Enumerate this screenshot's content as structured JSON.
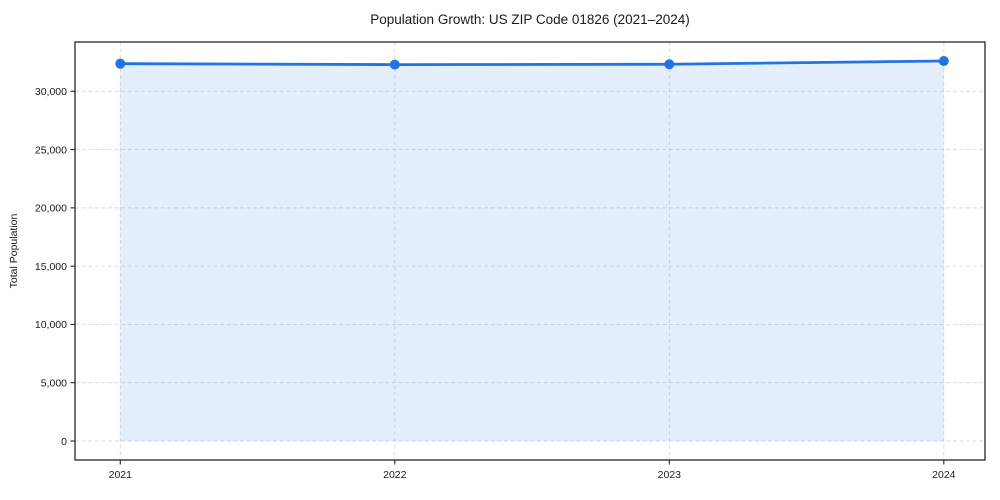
{
  "chart_data": {
    "type": "line",
    "title": "Population Growth: US ZIP Code 01826 (2021–2024)",
    "xlabel": "",
    "ylabel": "Total Population",
    "x": [
      2021,
      2022,
      2023,
      2024
    ],
    "series": [
      {
        "name": "Total Population",
        "values": [
          32370,
          32290,
          32320,
          32600
        ]
      }
    ],
    "x_tick_labels": [
      "2021",
      "2022",
      "2023",
      "2024"
    ],
    "y_ticks": [
      0,
      5000,
      10000,
      15000,
      20000,
      25000,
      30000
    ],
    "y_tick_labels": [
      "0",
      "5,000",
      "10,000",
      "15,000",
      "20,000",
      "25,000",
      "30,000"
    ],
    "xlim": [
      2020.835,
      2024.15
    ],
    "ylim": [
      -1630,
      34230
    ],
    "grid": true,
    "grid_style": "dashed",
    "area_fill": true,
    "markers": true,
    "legend_position": "none",
    "colors": {
      "line": "#2273e3",
      "marker": "#2273e3",
      "area": "#2273e3",
      "area_opacity": 0.12,
      "grid": "#d9d9d9",
      "spine": "#262626",
      "text": "#1a1a1a",
      "background": "#ffffff"
    }
  }
}
